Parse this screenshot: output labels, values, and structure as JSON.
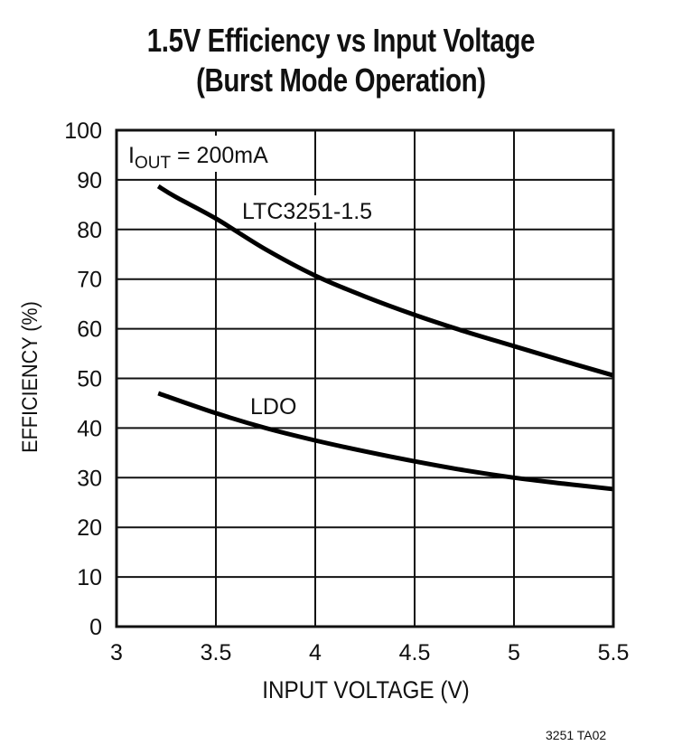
{
  "chart_data": {
    "type": "line",
    "title": "1.5V Efficiency vs Input Voltage",
    "subtitle": "(Burst Mode Operation)",
    "xlabel": "INPUT VOLTAGE (V)",
    "ylabel": "EFFICIENCY (%)",
    "xlim": [
      3,
      5.5
    ],
    "ylim": [
      0,
      100
    ],
    "x_ticks": [
      "3",
      "3.5",
      "4",
      "4.5",
      "5",
      "5.5"
    ],
    "y_ticks": [
      "0",
      "10",
      "20",
      "30",
      "40",
      "50",
      "60",
      "70",
      "80",
      "90",
      "100"
    ],
    "grid": true,
    "annotation": "IOUT = 200mA",
    "series": [
      {
        "name": "LTC3251-1.5",
        "x": [
          3.21,
          3.3,
          3.5,
          3.75,
          4.0,
          4.25,
          4.5,
          4.75,
          5.0,
          5.25,
          5.5
        ],
        "values": [
          88.7,
          86.5,
          82.2,
          76.0,
          70.7,
          66.5,
          62.8,
          59.5,
          56.5,
          53.5,
          50.6
        ]
      },
      {
        "name": "LDO",
        "x": [
          3.21,
          3.5,
          3.75,
          4.0,
          4.25,
          4.5,
          4.75,
          5.0,
          5.25,
          5.5
        ],
        "values": [
          47.0,
          43.0,
          40.0,
          37.5,
          35.3,
          33.3,
          31.5,
          30.0,
          28.8,
          27.7
        ]
      }
    ],
    "figure_code": "3251 TA02"
  },
  "labels": {
    "iout_prefix": "I",
    "iout_sub": "OUT",
    "iout_rest": " = 200mA",
    "ltc": "LTC3251-1.5",
    "ldo": "LDO"
  }
}
